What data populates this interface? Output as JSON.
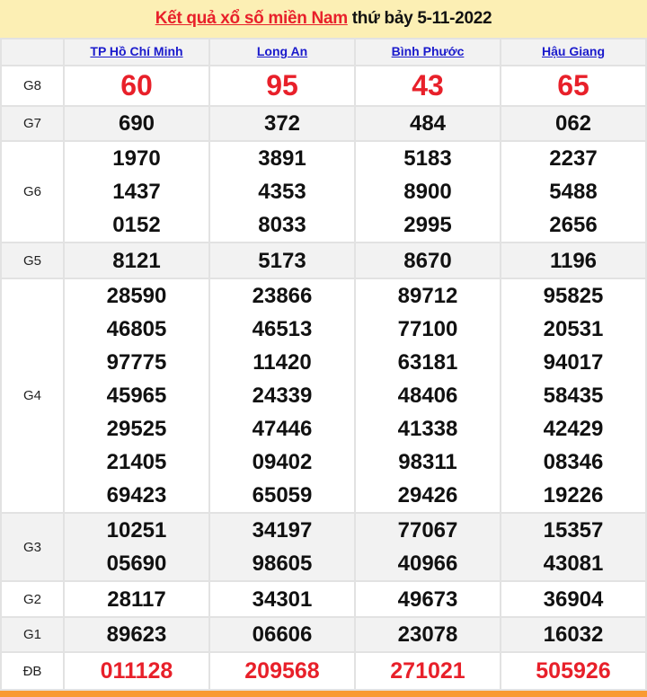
{
  "title": {
    "link": "Kết quả xổ số miền Nam",
    "suffix": " thứ bảy 5-11-2022"
  },
  "provinces": [
    "TP Hồ Chí Minh",
    "Long An",
    "Bình Phước",
    "Hậu Giang"
  ],
  "prizes": [
    {
      "label": "G8",
      "values": [
        [
          "60"
        ],
        [
          "95"
        ],
        [
          "43"
        ],
        [
          "65"
        ]
      ]
    },
    {
      "label": "G7",
      "values": [
        [
          "690"
        ],
        [
          "372"
        ],
        [
          "484"
        ],
        [
          "062"
        ]
      ]
    },
    {
      "label": "G6",
      "values": [
        [
          "1970",
          "1437",
          "0152"
        ],
        [
          "3891",
          "4353",
          "8033"
        ],
        [
          "5183",
          "8900",
          "2995"
        ],
        [
          "2237",
          "5488",
          "2656"
        ]
      ]
    },
    {
      "label": "G5",
      "values": [
        [
          "8121"
        ],
        [
          "5173"
        ],
        [
          "8670"
        ],
        [
          "1196"
        ]
      ]
    },
    {
      "label": "G4",
      "values": [
        [
          "28590",
          "46805",
          "97775",
          "45965",
          "29525",
          "21405",
          "69423"
        ],
        [
          "23866",
          "46513",
          "11420",
          "24339",
          "47446",
          "09402",
          "65059"
        ],
        [
          "89712",
          "77100",
          "63181",
          "48406",
          "41338",
          "98311",
          "29426"
        ],
        [
          "95825",
          "20531",
          "94017",
          "58435",
          "42429",
          "08346",
          "19226"
        ]
      ]
    },
    {
      "label": "G3",
      "values": [
        [
          "10251",
          "05690"
        ],
        [
          "34197",
          "98605"
        ],
        [
          "77067",
          "40966"
        ],
        [
          "15357",
          "43081"
        ]
      ]
    },
    {
      "label": "G2",
      "values": [
        [
          "28117"
        ],
        [
          "34301"
        ],
        [
          "49673"
        ],
        [
          "36904"
        ]
      ]
    },
    {
      "label": "G1",
      "values": [
        [
          "89623"
        ],
        [
          "06606"
        ],
        [
          "23078"
        ],
        [
          "16032"
        ]
      ]
    },
    {
      "label": "ĐB",
      "values": [
        [
          "011128"
        ],
        [
          "209568"
        ],
        [
          "271021"
        ],
        [
          "505926"
        ]
      ]
    }
  ],
  "colors": {
    "accent": "#e8202a",
    "link": "#1a1acc",
    "header_bg": "#fcefb4",
    "footer": "#f99a32"
  }
}
